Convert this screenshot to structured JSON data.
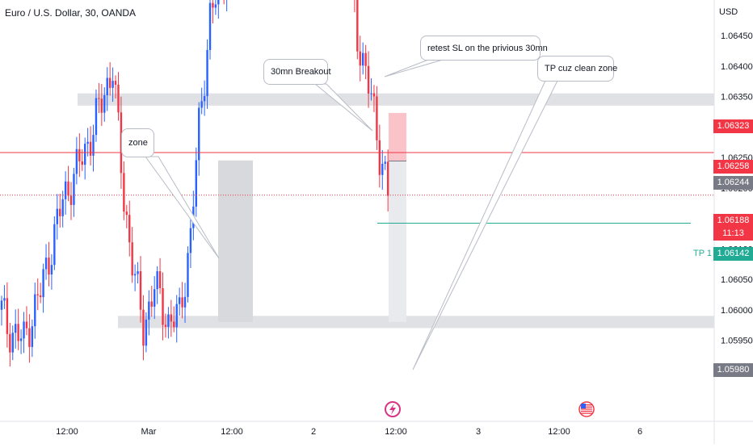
{
  "header": {
    "symbol_title": "Euro / U.S. Dollar, 30, OANDA",
    "currency": "USD"
  },
  "colors": {
    "up_candle": "#2962ff",
    "down_candle": "#f23645",
    "zone_fill": "#e0e1e4",
    "stop_zone": "#f9c3c9",
    "target_zone": "#e9eaed",
    "tp_line": "#22ab94",
    "price_line": "#f23645"
  },
  "annotations": {
    "zone": "zone",
    "breakout": "30mn Breakout",
    "retest": "retest SL on the privious 30mn",
    "tp_reason": "TP cuz clean zone"
  },
  "price_tags": {
    "top_red": "1.06323",
    "red_line": "1.06258",
    "gray": "1.06244",
    "current": "1.06188",
    "countdown": "11:13",
    "tp": "1.06142",
    "bottom": "1.05980"
  },
  "tp_label": "TP 1",
  "chart_data": {
    "type": "candlestick",
    "instrument": "Euro / U.S. Dollar",
    "timeframe": "30",
    "source": "OANDA",
    "y_axis": {
      "unit": "USD",
      "range": [
        1.0592,
        1.0653
      ],
      "ticks": [
        "1.06450",
        "1.06400",
        "1.06350",
        "1.06300",
        "1.06250",
        "1.06200",
        "1.06150",
        "1.06100",
        "1.06050",
        "1.06000",
        "1.05950"
      ]
    },
    "x_axis": {
      "tick_labels": [
        "12:00",
        "Mar",
        "12:00",
        "2",
        "12:00",
        "3",
        "12:00",
        "6"
      ]
    },
    "levels": {
      "current_price": 1.06188,
      "red_line": 1.06258,
      "tp1": 1.06142,
      "upper_zone": [
        1.06335,
        1.06355
      ],
      "lower_zone": [
        1.0597,
        1.0599
      ]
    },
    "position": {
      "stop": 1.06323,
      "entry": 1.06244,
      "target": 1.0598
    },
    "zone_box": [
      1.0598,
      1.06245
    ]
  }
}
